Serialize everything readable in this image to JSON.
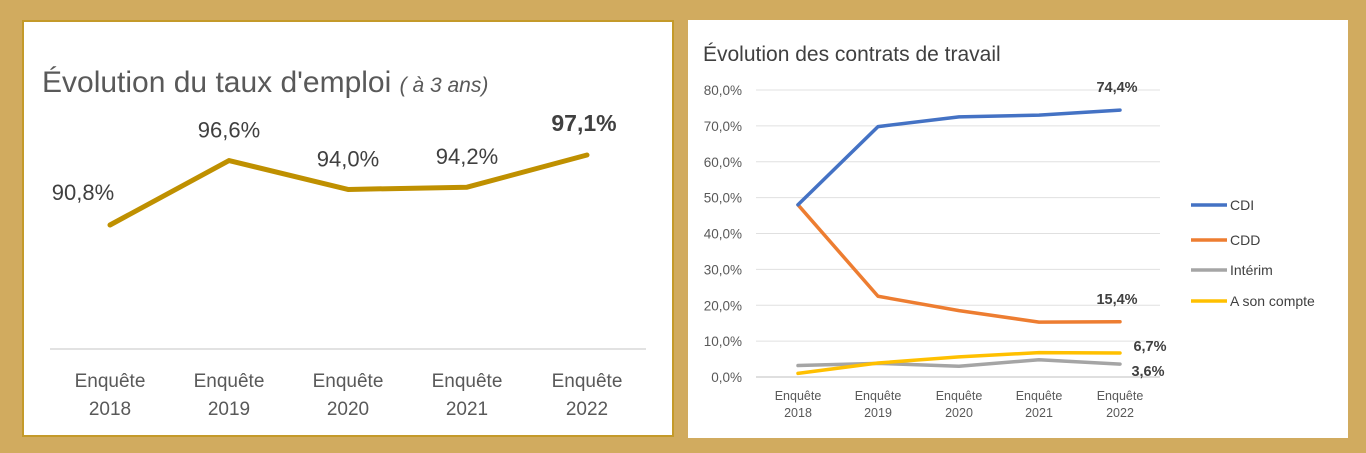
{
  "chart_data": [
    {
      "type": "line",
      "title": "Évolution du taux d'emploi",
      "subtitle": "( à 3 ans)",
      "categories": [
        "Enquête 2018",
        "Enquête 2019",
        "Enquête 2020",
        "Enquête 2021",
        "Enquête 2022"
      ],
      "category_lines": [
        [
          "Enquête",
          "2018"
        ],
        [
          "Enquête",
          "2019"
        ],
        [
          "Enquête",
          "2020"
        ],
        [
          "Enquête",
          "2021"
        ],
        [
          "Enquête",
          "2022"
        ]
      ],
      "series": [
        {
          "values": [
            90.8,
            96.6,
            94.0,
            94.2,
            97.1
          ],
          "color": "#bf9000"
        }
      ],
      "data_labels": [
        "90,8%",
        "96,6%",
        "94,0%",
        "94,2%",
        "97,1%"
      ],
      "ylim": [
        85,
        100
      ],
      "grid": false
    },
    {
      "type": "line",
      "title": "Évolution des contrats de travail",
      "categories": [
        "Enquête 2018",
        "Enquête 2019",
        "Enquête 2020",
        "Enquête 2021",
        "Enquête 2022"
      ],
      "category_lines": [
        [
          "Enquête",
          "2018"
        ],
        [
          "Enquête",
          "2019"
        ],
        [
          "Enquête",
          "2020"
        ],
        [
          "Enquête",
          "2021"
        ],
        [
          "Enquête",
          "2022"
        ]
      ],
      "ylim": [
        0,
        80
      ],
      "yticks": [
        0,
        10,
        20,
        30,
        40,
        50,
        60,
        70,
        80
      ],
      "ytick_labels": [
        "0,0%",
        "10,0%",
        "20,0%",
        "30,0%",
        "40,0%",
        "50,0%",
        "60,0%",
        "70,0%",
        "80,0%"
      ],
      "grid": true,
      "legend_position": "right",
      "series": [
        {
          "name": "CDI",
          "values": [
            48.0,
            69.8,
            72.5,
            73.0,
            74.4
          ],
          "color": "#4472c4",
          "end_label": "74,4%"
        },
        {
          "name": "CDD",
          "values": [
            48.0,
            22.5,
            18.5,
            15.3,
            15.4
          ],
          "color": "#ed7d31",
          "end_label": "15,4%"
        },
        {
          "name": "Intérim",
          "values": [
            3.2,
            3.8,
            3.0,
            4.8,
            3.6
          ],
          "color": "#a5a5a5",
          "end_label": "3,6%"
        },
        {
          "name": "A son compte",
          "values": [
            1.0,
            3.9,
            5.6,
            6.8,
            6.7
          ],
          "color": "#ffc000",
          "end_label": "6,7%"
        }
      ]
    }
  ]
}
